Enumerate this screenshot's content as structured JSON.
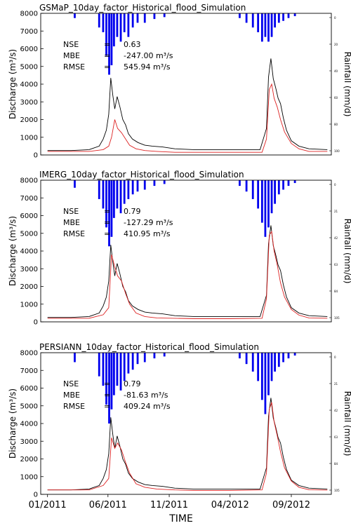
{
  "figure": {
    "xlabel": "TIME",
    "x_ticks": [
      "01/2011",
      "06/2011",
      "11/2011",
      "04/2012",
      "09/2012"
    ]
  },
  "chart_data": [
    {
      "type": "line",
      "title": "GSMaP_10day_factor_Historical_flood_Simulation",
      "ylabel": "Discharge (m³/s)",
      "y2label": "Rainfall (mm/d)",
      "ylim": [
        0,
        8000
      ],
      "y_ticks": [
        0,
        1000,
        2000,
        3000,
        4000,
        5000,
        6000,
        7000,
        8000
      ],
      "y2_ticks": [
        "0",
        "20",
        "40",
        "60",
        "80",
        "100"
      ],
      "stats": [
        {
          "label": "NSE",
          "eq": "=",
          "value": "0.63",
          "unit": ""
        },
        {
          "label": "MBE",
          "eq": "=",
          "value": "-247.00",
          "unit": "m³/s"
        },
        {
          "label": "RMSE",
          "eq": "=",
          "value": "545.94",
          "unit": "m³/s"
        }
      ],
      "series": [
        {
          "color": "#000000",
          "kind": "observed",
          "x": [
            "2011-01-01",
            "2011-03-01",
            "2011-04-15",
            "2011-05-10",
            "2011-05-20",
            "2011-05-28",
            "2011-06-03",
            "2011-06-08",
            "2011-06-13",
            "2011-06-18",
            "2011-06-24",
            "2011-07-01",
            "2011-07-08",
            "2011-07-15",
            "2011-07-22",
            "2011-08-01",
            "2011-08-15",
            "2011-09-01",
            "2011-09-20",
            "2011-10-15",
            "2011-11-15",
            "2012-01-01",
            "2012-03-01",
            "2012-05-01",
            "2012-06-15",
            "2012-07-01",
            "2012-07-06",
            "2012-07-12",
            "2012-07-18",
            "2012-07-24",
            "2012-07-30",
            "2012-08-05",
            "2012-08-12",
            "2012-08-20",
            "2012-09-01",
            "2012-09-20",
            "2012-10-15",
            "2012-11-30"
          ],
          "y": [
            250,
            250,
            300,
            500,
            900,
            1400,
            2300,
            4350,
            3400,
            2600,
            3300,
            2700,
            2000,
            1700,
            1200,
            900,
            700,
            550,
            500,
            450,
            350,
            300,
            300,
            300,
            300,
            1500,
            4400,
            5450,
            4300,
            3800,
            3200,
            2900,
            2100,
            1400,
            800,
            500,
            350,
            300
          ]
        },
        {
          "color": "#dd2222",
          "kind": "simulated",
          "x": [
            "2011-01-01",
            "2011-04-15",
            "2011-05-20",
            "2011-06-03",
            "2011-06-10",
            "2011-06-18",
            "2011-06-25",
            "2011-07-05",
            "2011-07-15",
            "2011-07-25",
            "2011-08-10",
            "2011-09-01",
            "2011-10-01",
            "2011-11-15",
            "2012-01-01",
            "2012-04-01",
            "2012-06-20",
            "2012-07-01",
            "2012-07-08",
            "2012-07-14",
            "2012-07-20",
            "2012-07-28",
            "2012-08-05",
            "2012-08-15",
            "2012-09-01",
            "2012-09-20",
            "2012-10-15",
            "2012-11-30"
          ],
          "y": [
            200,
            200,
            300,
            500,
            1000,
            2000,
            1500,
            1250,
            900,
            550,
            350,
            250,
            200,
            150,
            150,
            150,
            150,
            900,
            3700,
            4000,
            3200,
            2700,
            2000,
            1300,
            650,
            350,
            200,
            200
          ]
        }
      ],
      "rainfall": [
        {
          "date": "2011-03-10",
          "mm": 5
        },
        {
          "date": "2011-05-10",
          "mm": 15
        },
        {
          "date": "2011-05-20",
          "mm": 20
        },
        {
          "date": "2011-05-28",
          "mm": 45
        },
        {
          "date": "2011-06-04",
          "mm": 65
        },
        {
          "date": "2011-06-10",
          "mm": 55
        },
        {
          "date": "2011-06-16",
          "mm": 35
        },
        {
          "date": "2011-06-24",
          "mm": 25
        },
        {
          "date": "2011-07-03",
          "mm": 30
        },
        {
          "date": "2011-07-12",
          "mm": 20
        },
        {
          "date": "2011-07-22",
          "mm": 25
        },
        {
          "date": "2011-08-02",
          "mm": 15
        },
        {
          "date": "2011-08-14",
          "mm": 10
        },
        {
          "date": "2011-09-01",
          "mm": 10
        },
        {
          "date": "2011-09-25",
          "mm": 6
        },
        {
          "date": "2011-10-20",
          "mm": 4
        },
        {
          "date": "2012-04-25",
          "mm": 5
        },
        {
          "date": "2012-05-12",
          "mm": 10
        },
        {
          "date": "2012-05-28",
          "mm": 15
        },
        {
          "date": "2012-06-10",
          "mm": 20
        },
        {
          "date": "2012-06-20",
          "mm": 30
        },
        {
          "date": "2012-06-28",
          "mm": 25
        },
        {
          "date": "2012-07-06",
          "mm": 30
        },
        {
          "date": "2012-07-14",
          "mm": 25
        },
        {
          "date": "2012-07-22",
          "mm": 15
        },
        {
          "date": "2012-08-01",
          "mm": 10
        },
        {
          "date": "2012-08-12",
          "mm": 8
        },
        {
          "date": "2012-08-25",
          "mm": 5
        },
        {
          "date": "2012-09-10",
          "mm": 3
        }
      ]
    },
    {
      "type": "line",
      "title": "IMERG_10day_factor_Historical_flood_Simulation",
      "ylabel": "Discharge (m³/s)",
      "y2label": "Rainfall (mm/d)",
      "ylim": [
        0,
        8000
      ],
      "y_ticks": [
        0,
        1000,
        2000,
        3000,
        4000,
        5000,
        6000,
        7000,
        8000
      ],
      "y2_ticks": [
        "0",
        "21",
        "42",
        "63",
        "84",
        "105"
      ],
      "stats": [
        {
          "label": "NSE",
          "eq": "=",
          "value": "0.79",
          "unit": ""
        },
        {
          "label": "MBE",
          "eq": "=",
          "value": "-127.29",
          "unit": "m³/s"
        },
        {
          "label": "RMSE",
          "eq": "=",
          "value": "410.95",
          "unit": "m³/s"
        }
      ],
      "series": [
        {
          "color": "#000000",
          "kind": "observed",
          "x": [
            "2011-01-01",
            "2011-03-01",
            "2011-04-15",
            "2011-05-10",
            "2011-05-20",
            "2011-05-28",
            "2011-06-03",
            "2011-06-08",
            "2011-06-13",
            "2011-06-18",
            "2011-06-24",
            "2011-07-01",
            "2011-07-08",
            "2011-07-15",
            "2011-07-22",
            "2011-08-01",
            "2011-08-15",
            "2011-09-01",
            "2011-09-20",
            "2011-10-15",
            "2011-11-15",
            "2012-01-01",
            "2012-03-01",
            "2012-05-01",
            "2012-06-15",
            "2012-07-01",
            "2012-07-06",
            "2012-07-12",
            "2012-07-18",
            "2012-07-24",
            "2012-07-30",
            "2012-08-05",
            "2012-08-12",
            "2012-08-20",
            "2012-09-01",
            "2012-09-20",
            "2012-10-15",
            "2012-11-30"
          ],
          "y": [
            250,
            250,
            300,
            500,
            900,
            1400,
            2300,
            4350,
            3400,
            2600,
            3300,
            2700,
            2000,
            1700,
            1200,
            900,
            700,
            550,
            500,
            450,
            350,
            300,
            300,
            300,
            300,
            1500,
            4400,
            5450,
            4300,
            3800,
            3200,
            2900,
            2100,
            1400,
            800,
            500,
            350,
            300
          ]
        },
        {
          "color": "#dd2222",
          "kind": "simulated",
          "x": [
            "2011-01-01",
            "2011-04-15",
            "2011-05-20",
            "2011-06-03",
            "2011-06-10",
            "2011-06-18",
            "2011-06-25",
            "2011-07-05",
            "2011-07-15",
            "2011-07-25",
            "2011-08-10",
            "2011-09-01",
            "2011-10-01",
            "2011-11-15",
            "2012-01-01",
            "2012-04-01",
            "2012-06-20",
            "2012-07-01",
            "2012-07-08",
            "2012-07-14",
            "2012-07-20",
            "2012-07-28",
            "2012-08-05",
            "2012-08-15",
            "2012-09-01",
            "2012-09-20",
            "2012-10-15",
            "2012-11-30"
          ],
          "y": [
            200,
            200,
            400,
            800,
            3800,
            3100,
            2600,
            2300,
            1600,
            1000,
            500,
            300,
            220,
            200,
            180,
            180,
            200,
            1300,
            4900,
            5100,
            4000,
            3200,
            2200,
            1400,
            700,
            380,
            220,
            200
          ]
        }
      ],
      "rainfall": [
        {
          "date": "2011-03-10",
          "mm": 8
        },
        {
          "date": "2011-05-10",
          "mm": 20
        },
        {
          "date": "2011-05-20",
          "mm": 30
        },
        {
          "date": "2011-05-28",
          "mm": 50
        },
        {
          "date": "2011-06-04",
          "mm": 70
        },
        {
          "date": "2011-06-10",
          "mm": 60
        },
        {
          "date": "2011-06-16",
          "mm": 40
        },
        {
          "date": "2011-06-24",
          "mm": 30
        },
        {
          "date": "2011-07-03",
          "mm": 35
        },
        {
          "date": "2011-07-12",
          "mm": 25
        },
        {
          "date": "2011-07-22",
          "mm": 20
        },
        {
          "date": "2011-08-02",
          "mm": 15
        },
        {
          "date": "2011-08-14",
          "mm": 12
        },
        {
          "date": "2011-09-01",
          "mm": 10
        },
        {
          "date": "2011-09-25",
          "mm": 6
        },
        {
          "date": "2011-10-20",
          "mm": 4
        },
        {
          "date": "2012-04-25",
          "mm": 6
        },
        {
          "date": "2012-05-12",
          "mm": 12
        },
        {
          "date": "2012-05-28",
          "mm": 20
        },
        {
          "date": "2012-06-10",
          "mm": 30
        },
        {
          "date": "2012-06-20",
          "mm": 45
        },
        {
          "date": "2012-06-28",
          "mm": 60
        },
        {
          "date": "2012-07-06",
          "mm": 50
        },
        {
          "date": "2012-07-14",
          "mm": 35
        },
        {
          "date": "2012-07-22",
          "mm": 25
        },
        {
          "date": "2012-08-01",
          "mm": 15
        },
        {
          "date": "2012-08-12",
          "mm": 10
        },
        {
          "date": "2012-08-25",
          "mm": 6
        },
        {
          "date": "2012-09-10",
          "mm": 3
        }
      ]
    },
    {
      "type": "line",
      "title": "PERSIANN_10day_factor_Historical_flood_Simulation",
      "ylabel": "Discharge (m³/s)",
      "y2label": "Rainfall (mm/d)",
      "ylim": [
        0,
        8000
      ],
      "y_ticks": [
        0,
        1000,
        2000,
        3000,
        4000,
        5000,
        6000,
        7000,
        8000
      ],
      "y2_ticks": [
        "0",
        "21",
        "42",
        "63",
        "84",
        "105"
      ],
      "stats": [
        {
          "label": "NSE",
          "eq": "=",
          "value": "0.79",
          "unit": ""
        },
        {
          "label": "MBE",
          "eq": "=",
          "value": "-81.63",
          "unit": "m³/s"
        },
        {
          "label": "RMSE",
          "eq": "=",
          "value": "409.24",
          "unit": "m³/s"
        }
      ],
      "series": [
        {
          "color": "#000000",
          "kind": "observed",
          "x": [
            "2011-01-01",
            "2011-03-01",
            "2011-04-15",
            "2011-05-10",
            "2011-05-20",
            "2011-05-28",
            "2011-06-03",
            "2011-06-08",
            "2011-06-13",
            "2011-06-18",
            "2011-06-24",
            "2011-07-01",
            "2011-07-08",
            "2011-07-15",
            "2011-07-22",
            "2011-08-01",
            "2011-08-15",
            "2011-09-01",
            "2011-09-20",
            "2011-10-15",
            "2011-11-15",
            "2012-01-01",
            "2012-03-01",
            "2012-05-01",
            "2012-06-15",
            "2012-07-01",
            "2012-07-06",
            "2012-07-12",
            "2012-07-18",
            "2012-07-24",
            "2012-07-30",
            "2012-08-05",
            "2012-08-12",
            "2012-08-20",
            "2012-09-01",
            "2012-09-20",
            "2012-10-15",
            "2012-11-30"
          ],
          "y": [
            250,
            250,
            300,
            500,
            900,
            1400,
            2300,
            4350,
            3400,
            2600,
            3300,
            2700,
            2000,
            1700,
            1200,
            900,
            700,
            550,
            500,
            450,
            350,
            300,
            300,
            300,
            300,
            1500,
            4400,
            5450,
            4300,
            3800,
            3200,
            2900,
            2100,
            1400,
            800,
            500,
            350,
            300
          ]
        },
        {
          "color": "#dd2222",
          "kind": "simulated",
          "x": [
            "2011-01-01",
            "2011-04-15",
            "2011-05-20",
            "2011-06-03",
            "2011-06-10",
            "2011-06-18",
            "2011-06-25",
            "2011-07-05",
            "2011-07-15",
            "2011-07-25",
            "2011-08-10",
            "2011-09-01",
            "2011-10-01",
            "2011-11-15",
            "2012-01-01",
            "2012-04-01",
            "2012-06-20",
            "2012-07-01",
            "2012-07-08",
            "2012-07-14",
            "2012-07-20",
            "2012-07-28",
            "2012-08-05",
            "2012-08-15",
            "2012-09-01",
            "2012-09-20",
            "2012-10-15",
            "2012-11-30"
          ],
          "y": [
            250,
            250,
            500,
            900,
            3200,
            2600,
            2900,
            2500,
            1800,
            1200,
            600,
            400,
            300,
            250,
            220,
            220,
            250,
            1200,
            4800,
            5200,
            4100,
            3300,
            2400,
            1500,
            750,
            400,
            260,
            240
          ]
        }
      ],
      "rainfall": [
        {
          "date": "2011-03-10",
          "mm": 10
        },
        {
          "date": "2011-05-10",
          "mm": 25
        },
        {
          "date": "2011-05-20",
          "mm": 35
        },
        {
          "date": "2011-05-28",
          "mm": 55
        },
        {
          "date": "2011-06-04",
          "mm": 75
        },
        {
          "date": "2011-06-10",
          "mm": 60
        },
        {
          "date": "2011-06-16",
          "mm": 45
        },
        {
          "date": "2011-06-24",
          "mm": 35
        },
        {
          "date": "2011-07-03",
          "mm": 40
        },
        {
          "date": "2011-07-12",
          "mm": 30
        },
        {
          "date": "2011-07-22",
          "mm": 22
        },
        {
          "date": "2011-08-02",
          "mm": 18
        },
        {
          "date": "2011-08-14",
          "mm": 12
        },
        {
          "date": "2011-09-01",
          "mm": 10
        },
        {
          "date": "2011-09-25",
          "mm": 6
        },
        {
          "date": "2011-10-20",
          "mm": 4
        },
        {
          "date": "2012-04-25",
          "mm": 6
        },
        {
          "date": "2012-05-12",
          "mm": 12
        },
        {
          "date": "2012-05-28",
          "mm": 20
        },
        {
          "date": "2012-06-10",
          "mm": 30
        },
        {
          "date": "2012-06-20",
          "mm": 50
        },
        {
          "date": "2012-06-28",
          "mm": 65
        },
        {
          "date": "2012-07-06",
          "mm": 45
        },
        {
          "date": "2012-07-14",
          "mm": 30
        },
        {
          "date": "2012-07-22",
          "mm": 20
        },
        {
          "date": "2012-08-01",
          "mm": 15
        },
        {
          "date": "2012-08-12",
          "mm": 10
        },
        {
          "date": "2012-08-25",
          "mm": 6
        },
        {
          "date": "2012-09-10",
          "mm": 3
        }
      ]
    }
  ]
}
